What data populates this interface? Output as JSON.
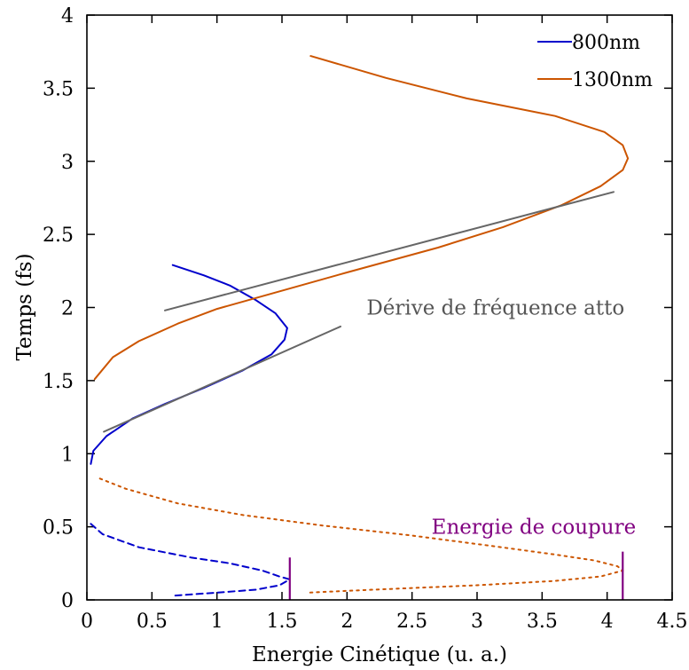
{
  "chart_data": {
    "type": "line",
    "xlabel": "Energie Cinétique (u. a.)",
    "ylabel": "Temps (fs)",
    "xlim": [
      0,
      4.5
    ],
    "ylim": [
      0,
      4
    ],
    "xticks": [
      "0",
      "0.5",
      "1",
      "1.5",
      "2",
      "2.5",
      "3",
      "3.5",
      "4",
      "4.5"
    ],
    "yticks": [
      "0",
      "0.5",
      "1",
      "1.5",
      "2",
      "2.5",
      "3",
      "3.5",
      "4"
    ],
    "grid": false,
    "legend_position": "top-right",
    "legend": [
      {
        "label": "800nm",
        "color": "#0000cc"
      },
      {
        "label": "1300nm",
        "color": "#cc5500"
      }
    ],
    "series": [
      {
        "name": "800nm",
        "color": "#0000cc",
        "style": "solid",
        "points": [
          [
            0.66,
            2.29
          ],
          [
            0.9,
            2.22
          ],
          [
            1.1,
            2.15
          ],
          [
            1.3,
            2.05
          ],
          [
            1.45,
            1.96
          ],
          [
            1.54,
            1.86
          ],
          [
            1.52,
            1.78
          ],
          [
            1.42,
            1.68
          ],
          [
            1.2,
            1.57
          ],
          [
            0.9,
            1.45
          ],
          [
            0.6,
            1.34
          ],
          [
            0.35,
            1.24
          ],
          [
            0.15,
            1.12
          ],
          [
            0.05,
            1.02
          ],
          [
            0.03,
            0.93
          ]
        ]
      },
      {
        "name": "800nm",
        "color": "#0000cc",
        "style": "dashed",
        "points": [
          [
            0.03,
            0.52
          ],
          [
            0.12,
            0.45
          ],
          [
            0.4,
            0.36
          ],
          [
            0.8,
            0.29
          ],
          [
            1.1,
            0.25
          ],
          [
            1.35,
            0.2
          ],
          [
            1.48,
            0.16
          ],
          [
            1.56,
            0.14
          ],
          [
            1.48,
            0.1
          ],
          [
            1.3,
            0.07
          ],
          [
            1.0,
            0.05
          ],
          [
            0.68,
            0.03
          ]
        ]
      },
      {
        "name": "1300nm",
        "color": "#cc5500",
        "style": "solid",
        "points": [
          [
            0.06,
            1.51
          ],
          [
            0.2,
            1.66
          ],
          [
            0.4,
            1.77
          ],
          [
            0.7,
            1.89
          ],
          [
            1.0,
            1.99
          ],
          [
            1.4,
            2.09
          ],
          [
            2.0,
            2.24
          ],
          [
            2.7,
            2.41
          ],
          [
            3.2,
            2.55
          ],
          [
            3.65,
            2.7
          ],
          [
            3.95,
            2.83
          ],
          [
            4.12,
            2.94
          ],
          [
            4.16,
            3.02
          ],
          [
            4.12,
            3.11
          ],
          [
            3.98,
            3.2
          ],
          [
            3.6,
            3.31
          ],
          [
            2.92,
            3.43
          ],
          [
            2.3,
            3.57
          ],
          [
            1.72,
            3.72
          ]
        ]
      },
      {
        "name": "1300nm",
        "color": "#cc5500",
        "style": "dotted",
        "points": [
          [
            0.1,
            0.83
          ],
          [
            0.3,
            0.76
          ],
          [
            0.7,
            0.66
          ],
          [
            1.2,
            0.58
          ],
          [
            1.8,
            0.51
          ],
          [
            2.5,
            0.44
          ],
          [
            3.1,
            0.37
          ],
          [
            3.6,
            0.31
          ],
          [
            3.9,
            0.27
          ],
          [
            4.08,
            0.23
          ],
          [
            4.12,
            0.2
          ],
          [
            3.95,
            0.16
          ],
          [
            3.6,
            0.13
          ],
          [
            3.0,
            0.1
          ],
          [
            2.2,
            0.07
          ],
          [
            1.7,
            0.05
          ]
        ]
      },
      {
        "name": "",
        "color": "#666666",
        "style": "solid",
        "points": [
          [
            0.6,
            1.98
          ],
          [
            4.05,
            2.79
          ]
        ]
      },
      {
        "name": "",
        "color": "#666666",
        "style": "solid",
        "points": [
          [
            0.13,
            1.15
          ],
          [
            1.95,
            1.87
          ]
        ]
      }
    ],
    "cutoff_markers": [
      {
        "x": 1.56,
        "y0": 0.0,
        "y1": 0.29,
        "color": "#800080"
      },
      {
        "x": 4.12,
        "y0": 0.0,
        "y1": 0.33,
        "color": "#800080"
      }
    ],
    "annotations": [
      {
        "text": "Dérive de fréquence atto",
        "x": 2.15,
        "y": 2.0,
        "color": "#555555"
      },
      {
        "text": "Energie de coupure",
        "x": 2.65,
        "y": 0.5,
        "color": "#800080"
      }
    ]
  }
}
